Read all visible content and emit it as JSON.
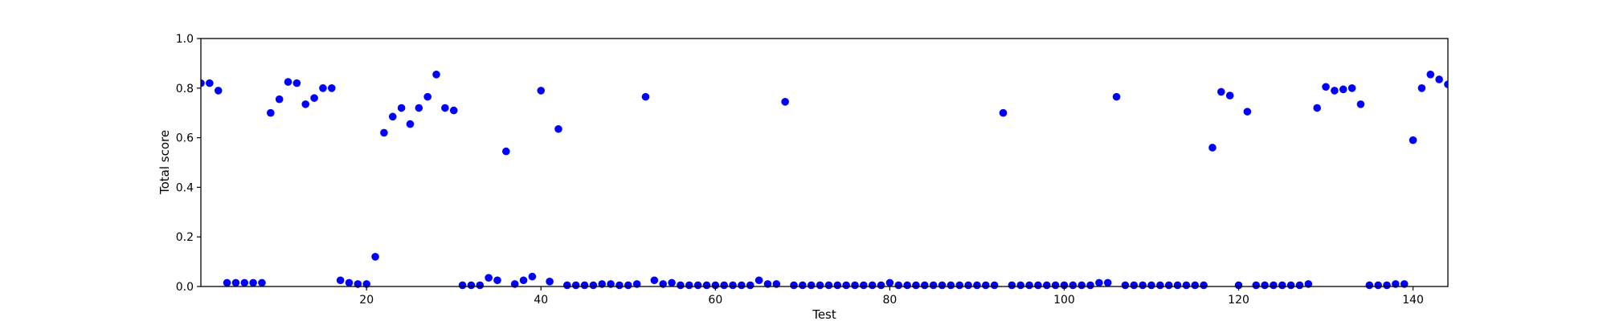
{
  "chart_data": {
    "type": "scatter",
    "xlabel": "Test",
    "ylabel": "Total score",
    "xlim": [
      1,
      144
    ],
    "ylim": [
      0.0,
      1.0
    ],
    "x_ticks": [
      20,
      40,
      60,
      80,
      100,
      120,
      140
    ],
    "x_tick_labels": [
      "20",
      "40",
      "60",
      "80",
      "100",
      "120",
      "140"
    ],
    "y_ticks": [
      0.0,
      0.2,
      0.4,
      0.6,
      0.8,
      1.0
    ],
    "y_tick_labels": [
      "0.0",
      "0.2",
      "0.4",
      "0.6",
      "0.8",
      "1.0"
    ],
    "grid": false,
    "marker_color": "#0000ff",
    "series": [
      {
        "x": [
          1,
          2,
          3,
          4,
          5,
          6,
          7,
          8,
          9,
          10,
          11,
          12,
          13,
          14,
          15,
          16,
          17,
          18,
          19,
          20,
          21,
          22,
          23,
          24,
          25,
          26,
          27,
          28,
          29,
          30,
          31,
          32,
          33,
          34,
          35,
          36,
          37,
          38,
          39,
          40,
          41,
          42,
          43,
          44,
          45,
          46,
          47,
          48,
          49,
          50,
          51,
          52,
          53,
          54,
          55,
          56,
          57,
          58,
          59,
          60,
          61,
          62,
          63,
          64,
          65,
          66,
          67,
          68,
          69,
          70,
          71,
          72,
          73,
          74,
          75,
          76,
          77,
          78,
          79,
          80,
          81,
          82,
          83,
          84,
          85,
          86,
          87,
          88,
          89,
          90,
          91,
          92,
          93,
          94,
          95,
          96,
          97,
          98,
          99,
          100,
          101,
          102,
          103,
          104,
          105,
          106,
          107,
          108,
          109,
          110,
          111,
          112,
          113,
          114,
          115,
          116,
          117,
          118,
          119,
          120,
          121,
          122,
          123,
          124,
          125,
          126,
          127,
          128,
          129,
          130,
          131,
          132,
          133,
          134,
          135,
          136,
          137,
          138,
          139,
          140,
          141,
          142,
          143,
          144
        ],
        "y": [
          0.82,
          0.82,
          0.79,
          0.015,
          0.015,
          0.015,
          0.015,
          0.015,
          0.7,
          0.755,
          0.825,
          0.82,
          0.735,
          0.76,
          0.8,
          0.8,
          0.025,
          0.015,
          0.01,
          0.01,
          0.12,
          0.62,
          0.685,
          0.72,
          0.655,
          0.72,
          0.765,
          0.855,
          0.72,
          0.71,
          0.005,
          0.005,
          0.005,
          0.035,
          0.025,
          0.545,
          0.01,
          0.025,
          0.04,
          0.79,
          0.02,
          0.635,
          0.005,
          0.005,
          0.005,
          0.005,
          0.01,
          0.01,
          0.005,
          0.005,
          0.01,
          0.765,
          0.025,
          0.01,
          0.015,
          0.005,
          0.005,
          0.005,
          0.005,
          0.005,
          0.005,
          0.005,
          0.005,
          0.005,
          0.025,
          0.01,
          0.01,
          0.745,
          0.005,
          0.005,
          0.005,
          0.005,
          0.005,
          0.005,
          0.005,
          0.005,
          0.005,
          0.005,
          0.005,
          0.015,
          0.005,
          0.005,
          0.005,
          0.005,
          0.005,
          0.005,
          0.005,
          0.005,
          0.005,
          0.005,
          0.005,
          0.005,
          0.7,
          0.005,
          0.005,
          0.005,
          0.005,
          0.005,
          0.005,
          0.005,
          0.005,
          0.005,
          0.005,
          0.015,
          0.015,
          0.765,
          0.005,
          0.005,
          0.005,
          0.005,
          0.005,
          0.005,
          0.005,
          0.005,
          0.005,
          0.005,
          0.56,
          0.785,
          0.77,
          0.005,
          0.705,
          0.005,
          0.005,
          0.005,
          0.005,
          0.005,
          0.005,
          0.01,
          0.72,
          0.805,
          0.79,
          0.795,
          0.8,
          0.735,
          0.005,
          0.005,
          0.005,
          0.01,
          0.01,
          0.59,
          0.8,
          0.855,
          0.835,
          0.815
        ]
      }
    ]
  }
}
